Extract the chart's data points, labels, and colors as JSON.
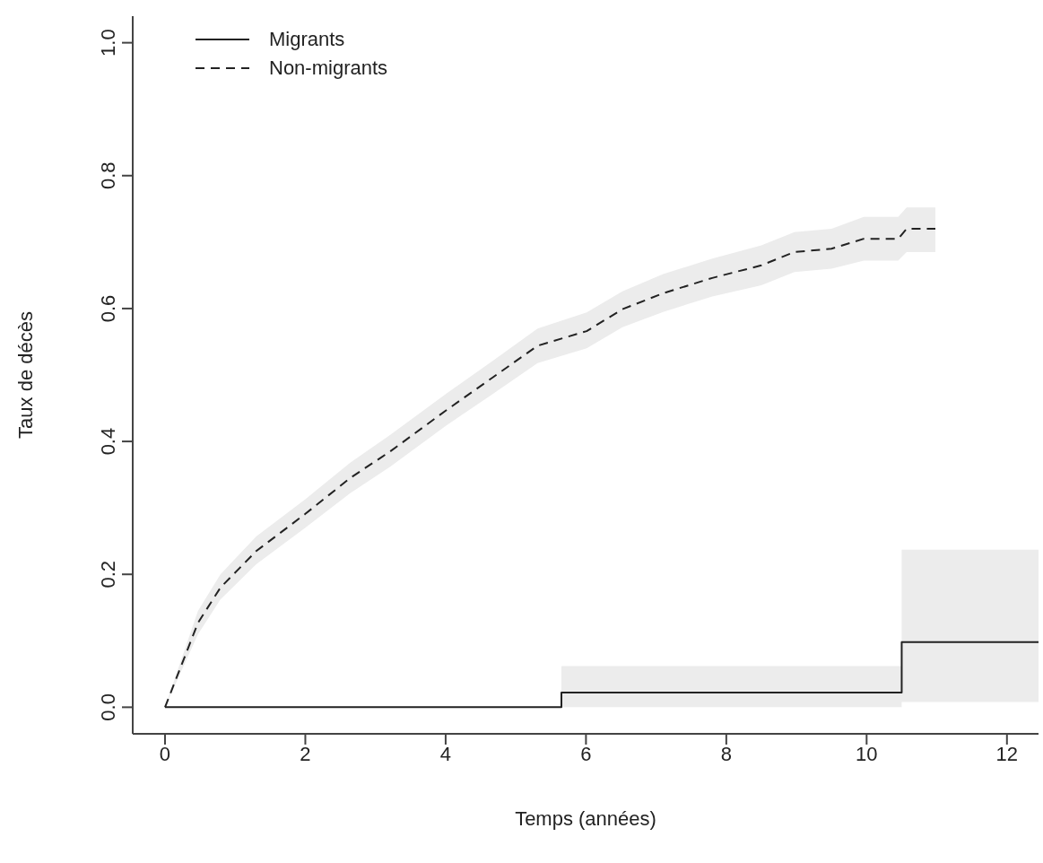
{
  "chart_data": {
    "type": "line",
    "xlabel": "Temps (années)",
    "ylabel": "Taux de décès",
    "xlim": [
      -0.46,
      12.45
    ],
    "xticks": [
      0,
      2,
      4,
      6,
      8,
      10,
      12
    ],
    "ylim": [
      -0.04,
      1.04
    ],
    "yticks": [
      {
        "value": 0,
        "label": "0.0"
      },
      {
        "value": 0.2,
        "label": "0.2"
      },
      {
        "value": 0.4,
        "label": "0.4"
      },
      {
        "value": 0.6,
        "label": "0.6"
      },
      {
        "value": 0.8,
        "label": "0.8"
      },
      {
        "value": 1,
        "label": "1.0"
      }
    ],
    "grid": false,
    "legend": "top left",
    "marker": "none",
    "series": [
      {
        "name": "Migrants",
        "type": "step",
        "line_style": "solid",
        "color": "#222222",
        "x": [
          0,
          5.65,
          10.5,
          12.45
        ],
        "values": [
          0,
          0.022,
          0.098,
          0.098
        ],
        "lower": [
          0,
          0,
          0.008,
          0.008
        ],
        "upper": [
          0,
          0.062,
          0.237,
          0.237
        ]
      },
      {
        "name": "Non-migrants",
        "type": "line",
        "line_style": "dashed",
        "color": "#222222",
        "x": [
          0,
          0.47,
          0.79,
          1.3,
          2.0,
          2.64,
          3.21,
          4.01,
          4.68,
          5.31,
          6.01,
          6.52,
          7.1,
          7.8,
          8.5,
          8.97,
          9.5,
          9.96,
          10.45,
          10.57,
          10.98
        ],
        "values": [
          0,
          0.127,
          0.18,
          0.235,
          0.291,
          0.345,
          0.385,
          0.447,
          0.497,
          0.544,
          0.566,
          0.599,
          0.623,
          0.646,
          0.665,
          0.685,
          0.69,
          0.705,
          0.705,
          0.72,
          0.72
        ],
        "lower": [
          0,
          0.11,
          0.162,
          0.215,
          0.27,
          0.322,
          0.362,
          0.424,
          0.472,
          0.518,
          0.54,
          0.572,
          0.595,
          0.618,
          0.635,
          0.655,
          0.66,
          0.672,
          0.672,
          0.685,
          0.685
        ],
        "upper": [
          0,
          0.145,
          0.2,
          0.257,
          0.313,
          0.368,
          0.41,
          0.472,
          0.522,
          0.57,
          0.594,
          0.626,
          0.652,
          0.675,
          0.695,
          0.715,
          0.72,
          0.738,
          0.738,
          0.752,
          0.752
        ]
      }
    ]
  }
}
